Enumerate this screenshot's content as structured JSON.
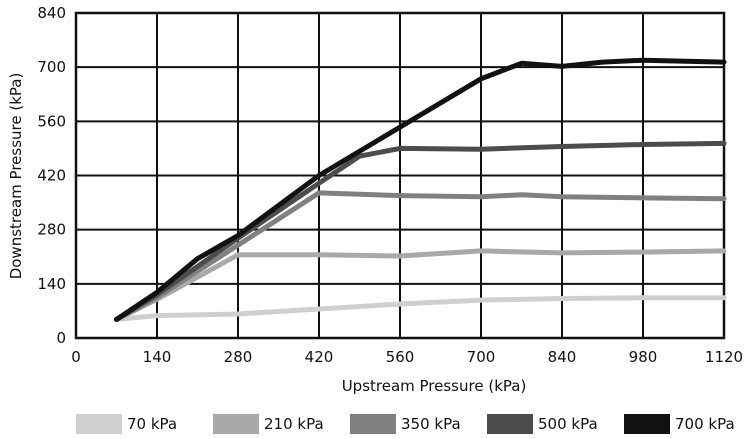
{
  "chart_data": {
    "type": "line",
    "title": "",
    "xlabel": "Upstream Pressure (kPa)",
    "ylabel": "Downstream Pressure (kPa)",
    "xlim": [
      0,
      1120
    ],
    "ylim": [
      0,
      840
    ],
    "x_ticks": [
      0,
      140,
      280,
      420,
      560,
      700,
      840,
      980,
      1120
    ],
    "y_ticks": [
      0,
      140,
      280,
      420,
      560,
      700,
      840
    ],
    "x_tick_labels": [
      "0",
      "140",
      "280",
      "420",
      "560",
      "700",
      "840",
      "980",
      "1120"
    ],
    "y_tick_labels": [
      "0",
      "140",
      "280",
      "420",
      "560",
      "700",
      "840"
    ],
    "grid": true,
    "legend_position": "bottom",
    "series": [
      {
        "name": "70 kPa",
        "color": "#cfcfcf",
        "points": [
          [
            70,
            48
          ],
          [
            140,
            58
          ],
          [
            280,
            62
          ],
          [
            420,
            75
          ],
          [
            560,
            88
          ],
          [
            700,
            98
          ],
          [
            840,
            102
          ],
          [
            980,
            104
          ],
          [
            1120,
            104
          ]
        ]
      },
      {
        "name": "210 kPa",
        "color": "#a9a9a9",
        "points": [
          [
            70,
            48
          ],
          [
            140,
            100
          ],
          [
            280,
            215
          ],
          [
            420,
            215
          ],
          [
            560,
            212
          ],
          [
            700,
            225
          ],
          [
            840,
            220
          ],
          [
            980,
            222
          ],
          [
            1120,
            225
          ]
        ]
      },
      {
        "name": "350 kPa",
        "color": "#808080",
        "points": [
          [
            70,
            48
          ],
          [
            140,
            105
          ],
          [
            280,
            240
          ],
          [
            420,
            375
          ],
          [
            560,
            368
          ],
          [
            700,
            365
          ],
          [
            770,
            370
          ],
          [
            840,
            365
          ],
          [
            980,
            362
          ],
          [
            1120,
            360
          ]
        ]
      },
      {
        "name": "500 kPa",
        "color": "#4c4c4c",
        "points": [
          [
            70,
            48
          ],
          [
            140,
            112
          ],
          [
            280,
            258
          ],
          [
            420,
            400
          ],
          [
            490,
            470
          ],
          [
            560,
            490
          ],
          [
            700,
            488
          ],
          [
            840,
            495
          ],
          [
            980,
            500
          ],
          [
            1120,
            503
          ]
        ]
      },
      {
        "name": "700 kPa",
        "color": "#111111",
        "points": [
          [
            70,
            48
          ],
          [
            140,
            118
          ],
          [
            210,
            205
          ],
          [
            280,
            265
          ],
          [
            420,
            420
          ],
          [
            560,
            545
          ],
          [
            700,
            670
          ],
          [
            770,
            710
          ],
          [
            840,
            702
          ],
          [
            910,
            713
          ],
          [
            980,
            718
          ],
          [
            1120,
            713
          ]
        ]
      }
    ]
  }
}
